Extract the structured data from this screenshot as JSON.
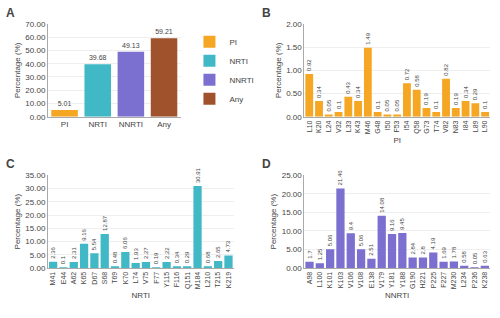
{
  "chart_data": [
    {
      "type": "bar",
      "title": "A",
      "categories": [
        "PI",
        "NRTI",
        "NNRTI",
        "Any"
      ],
      "values": [
        5.01,
        39.68,
        49.13,
        59.21
      ],
      "colors": [
        "#F5A623",
        "#40B8C5",
        "#7B6FD0",
        "#A0522D"
      ],
      "ylabel": "Percentage (%)",
      "ylim": [
        0,
        70
      ],
      "yticks": [
        {
          "value": 0,
          "label": "0.00"
        },
        {
          "value": 10,
          "label": "10.00"
        },
        {
          "value": 20,
          "label": "20.00"
        },
        {
          "value": 30,
          "label": "30.00"
        },
        {
          "value": 40,
          "label": "40.00"
        },
        {
          "value": 50,
          "label": "50.00"
        },
        {
          "value": 60,
          "label": "60.00"
        },
        {
          "value": 70,
          "label": "70.00"
        }
      ],
      "legend": "right",
      "grid": true,
      "data_labels": true
    },
    {
      "type": "bar",
      "title": "B",
      "categories": [
        "L10",
        "K20",
        "L24",
        "V32",
        "L33",
        "K43",
        "M46",
        "G48",
        "I50",
        "F53",
        "I54",
        "Q58",
        "G73",
        "T74",
        "V82",
        "N83",
        "I84",
        "L89",
        "L90"
      ],
      "values": [
        0.92,
        0.34,
        0.05,
        0.1,
        0.43,
        0.34,
        1.49,
        0.1,
        0.05,
        0.05,
        0.72,
        0.58,
        0.19,
        0.1,
        0.82,
        0.19,
        0.34,
        0.29,
        0.1
      ],
      "color": "#F5A623",
      "ylabel": "Percentage (%)",
      "xlabel": "PI",
      "ylim": [
        0,
        2.0
      ],
      "yticks": [
        {
          "value": 0,
          "label": "0.00"
        },
        {
          "value": 0.5,
          "label": "0.50"
        },
        {
          "value": 1,
          "label": "1.00"
        },
        {
          "value": 1.5,
          "label": "1.50"
        },
        {
          "value": 2,
          "label": "2.00"
        }
      ],
      "grid": true,
      "data_labels": true
    },
    {
      "type": "bar",
      "title": "C",
      "categories": [
        "M41",
        "E44",
        "A62",
        "K65",
        "D67",
        "S68",
        "T69",
        "K70",
        "L74",
        "V75",
        "F77",
        "Y115",
        "F116",
        "Q151",
        "M184",
        "L210",
        "T215",
        "K219"
      ],
      "values": [
        2.36,
        0.1,
        2.31,
        9.16,
        5.54,
        12.87,
        0.48,
        6.06,
        1.93,
        2.27,
        0.19,
        2.22,
        0.34,
        0.29,
        30.91,
        0.68,
        2.65,
        4.73
      ],
      "color": "#40B8C5",
      "ylabel": "Percentage (%)",
      "xlabel": "NRTI",
      "ylim": [
        0,
        35
      ],
      "yticks": [
        {
          "value": 0,
          "label": "0.00"
        },
        {
          "value": 5,
          "label": "5.00"
        },
        {
          "value": 10,
          "label": "10.00"
        },
        {
          "value": 15,
          "label": "15.00"
        },
        {
          "value": 20,
          "label": "20.00"
        },
        {
          "value": 25,
          "label": "25.00"
        },
        {
          "value": 30,
          "label": "30.00"
        },
        {
          "value": 35,
          "label": "35.00"
        }
      ],
      "grid": true,
      "data_labels": true
    },
    {
      "type": "bar",
      "title": "D",
      "categories": [
        "A98",
        "L100",
        "K101",
        "K103",
        "V106",
        "V108",
        "E138",
        "V179",
        "Y181",
        "Y188",
        "G190",
        "H221",
        "P225",
        "F227",
        "M230",
        "L234",
        "P236",
        "K238"
      ],
      "values": [
        1.7,
        1.25,
        5.06,
        21.46,
        9.4,
        5.06,
        2.51,
        14.08,
        9.16,
        9.45,
        2.84,
        2.8,
        4.19,
        1.69,
        1.78,
        0.58,
        0.05,
        0.63
      ],
      "color": "#7B6FD0",
      "ylabel": "Percentage (%)",
      "xlabel": "NNRTI",
      "ylim": [
        0,
        25
      ],
      "yticks": [
        {
          "value": 0,
          "label": "0.00"
        },
        {
          "value": 5,
          "label": "5.00"
        },
        {
          "value": 10,
          "label": "10.00"
        },
        {
          "value": 15,
          "label": "15.00"
        },
        {
          "value": 20,
          "label": "20.00"
        },
        {
          "value": 25,
          "label": "25.00"
        }
      ],
      "grid": true,
      "data_labels": true
    }
  ]
}
